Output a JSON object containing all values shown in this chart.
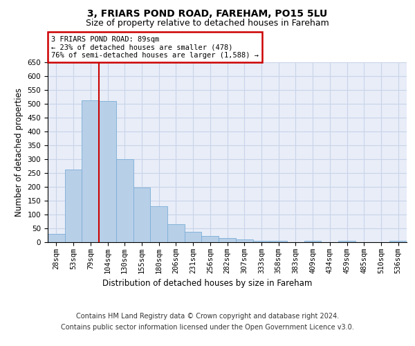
{
  "title": "3, FRIARS POND ROAD, FAREHAM, PO15 5LU",
  "subtitle": "Size of property relative to detached houses in Fareham",
  "xlabel": "Distribution of detached houses by size in Fareham",
  "ylabel": "Number of detached properties",
  "footer_line1": "Contains HM Land Registry data © Crown copyright and database right 2024.",
  "footer_line2": "Contains public sector information licensed under the Open Government Licence v3.0.",
  "bin_labels": [
    "28sqm",
    "53sqm",
    "79sqm",
    "104sqm",
    "130sqm",
    "155sqm",
    "180sqm",
    "206sqm",
    "231sqm",
    "256sqm",
    "282sqm",
    "307sqm",
    "333sqm",
    "358sqm",
    "383sqm",
    "409sqm",
    "434sqm",
    "459sqm",
    "485sqm",
    "510sqm",
    "536sqm"
  ],
  "bar_heights": [
    30,
    263,
    513,
    510,
    300,
    197,
    130,
    65,
    37,
    22,
    14,
    10,
    5,
    4,
    1,
    5,
    1,
    5,
    1,
    1,
    5
  ],
  "bar_color": "#b8cfe8",
  "bar_edge_color": "#7aaed6",
  "annotation_text": "3 FRIARS POND ROAD: 89sqm\n← 23% of detached houses are smaller (478)\n76% of semi-detached houses are larger (1,588) →",
  "annotation_box_color": "#ffffff",
  "annotation_border_color": "#cc0000",
  "red_line_color": "#cc0000",
  "ylim": [
    0,
    650
  ],
  "yticks": [
    0,
    50,
    100,
    150,
    200,
    250,
    300,
    350,
    400,
    450,
    500,
    550,
    600,
    650
  ],
  "grid_color": "#c8d4e8",
  "background_color": "#e8edf8",
  "title_fontsize": 10,
  "subtitle_fontsize": 9,
  "tick_fontsize": 7.5,
  "label_fontsize": 8.5,
  "footer_fontsize": 7,
  "red_line_bin_idx": 2,
  "bar_width": 1.0
}
